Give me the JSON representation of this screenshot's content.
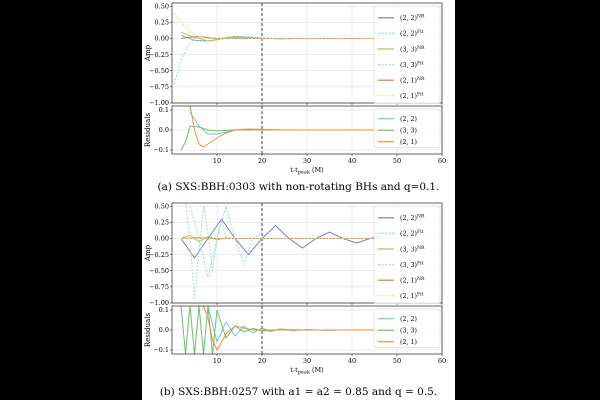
{
  "figures": [
    {
      "caption": "(a) SXS:BBH:0303 with non-rotating BHs and q=0.1.",
      "xlabel": "t-t_peak (M)",
      "amp_ylabel": "Amp",
      "res_ylabel": "Residuals",
      "amp_yticks": [
        "0.50",
        "0.25",
        "0.00",
        "−0.25",
        "−0.50",
        "−0.75",
        "−1.00"
      ],
      "res_yticks": [
        "0.1",
        "0.0",
        "−0.1"
      ],
      "xticks": [
        "10",
        "20",
        "30",
        "40",
        "50",
        "60"
      ],
      "amp_legend": [
        "(2, 2)^NR",
        "(2, 2)^Fit",
        "(3, 3)^NR",
        "(3, 3)^Fit",
        "(2, 1)^NR",
        "(2, 1)^Fit"
      ],
      "res_legend": [
        "(2, 2)",
        "(3, 3)",
        "(2, 1)"
      ]
    },
    {
      "caption": "(b) SXS:BBH:0257 with a1 = a2 = 0.85 and q = 0.5.",
      "xlabel": "t-t_peak (M)",
      "amp_ylabel": "Amp",
      "res_ylabel": "Residuals",
      "amp_yticks": [
        "0.50",
        "0.25",
        "0.00",
        "−0.25",
        "−0.50",
        "−0.75",
        "−1.00"
      ],
      "res_yticks": [
        "0.1",
        "0.0",
        "−0.1"
      ],
      "xticks": [
        "10",
        "20",
        "30",
        "40",
        "50",
        "60"
      ],
      "amp_legend": [
        "(2, 2)^NR",
        "(2, 2)^Fit",
        "(3, 3)^NR",
        "(3, 3)^Fit",
        "(2, 1)^NR",
        "(2, 1)^Fit"
      ],
      "res_legend": [
        "(2, 2)",
        "(3, 3)",
        "(2, 1)"
      ]
    }
  ],
  "colors": {
    "c22nr": "#7b7bd6",
    "c22fit": "#7fe8f0",
    "c33nr": "#a8c84e",
    "c33fit": "#9fe0c8",
    "c21nr": "#e07a3a",
    "c21fit": "#f2d77a",
    "r22": "#6cc6ee",
    "r33": "#6cc06c",
    "r21": "#f0903a",
    "vline": "#000000"
  },
  "chart_data": [
    {
      "type": "line",
      "panel": "amplitude (a)",
      "xlim": [
        0,
        60
      ],
      "ylim": [
        -1.0,
        0.55
      ],
      "grid": true,
      "vline_x": 20,
      "legend_position": "right",
      "series": [
        {
          "name": "(2, 2)^NR",
          "x": [
            2,
            5,
            8,
            11,
            14,
            17,
            20,
            24,
            28,
            34,
            40,
            47
          ],
          "y": [
            0.05,
            -0.03,
            -0.04,
            0.0,
            0.03,
            0.02,
            0.005,
            -0.005,
            0.0,
            0.0,
            0.0,
            0.0
          ]
        },
        {
          "name": "(2, 2)^Fit",
          "x": [
            2,
            5,
            8,
            11,
            14,
            17,
            20,
            24,
            28,
            34,
            40,
            47
          ],
          "y": [
            0.05,
            -0.03,
            -0.04,
            0.0,
            0.03,
            0.02,
            0.005,
            -0.005,
            0.0,
            0.0,
            0.0,
            0.0
          ]
        },
        {
          "name": "(3, 3)^NR",
          "x": [
            2,
            4,
            6,
            8,
            10,
            13,
            16,
            20,
            25,
            32,
            40,
            47
          ],
          "y": [
            0.1,
            0.04,
            0.0,
            -0.04,
            -0.02,
            0.02,
            0.01,
            0.0,
            0.0,
            0.0,
            0.0,
            0.0
          ]
        },
        {
          "name": "(3, 3)^Fit",
          "x": [
            0.5,
            2,
            3.5,
            5,
            7,
            9,
            12,
            16,
            20,
            30,
            47
          ],
          "y": [
            -0.7,
            -0.35,
            -0.12,
            0.0,
            0.03,
            0.01,
            0.0,
            0.0,
            0.0,
            0.0,
            0.0
          ]
        },
        {
          "name": "(2, 1)^NR",
          "x": [
            2,
            4,
            6,
            8,
            10,
            13,
            16,
            20,
            30,
            47
          ],
          "y": [
            0.0,
            0.02,
            0.03,
            0.01,
            0.0,
            0.0,
            0.0,
            0.0,
            0.0,
            0.0
          ]
        },
        {
          "name": "(2, 1)^Fit",
          "x": [
            0.5,
            2,
            4,
            6,
            8,
            11,
            15,
            20,
            30,
            47
          ],
          "y": [
            0.4,
            0.25,
            0.1,
            0.03,
            0.0,
            0.0,
            0.0,
            0.0,
            0.0,
            0.0
          ]
        }
      ]
    },
    {
      "type": "line",
      "panel": "residuals (a)",
      "xlim": [
        0,
        60
      ],
      "ylim": [
        -0.12,
        0.12
      ],
      "grid": true,
      "vline_x": 20,
      "legend_position": "right",
      "series": [
        {
          "name": "(2, 2)",
          "x": [
            4,
            6,
            8,
            10,
            12,
            14,
            17,
            20,
            25,
            30,
            40,
            47
          ],
          "y": [
            0.09,
            0.02,
            -0.02,
            -0.02,
            -0.01,
            0.0,
            0.005,
            0.0,
            0.0,
            0.0,
            0.0,
            0.0
          ]
        },
        {
          "name": "(3, 3)",
          "x": [
            2,
            3,
            4,
            6,
            8,
            10,
            13,
            16,
            20,
            30,
            47
          ],
          "y": [
            -0.1,
            -0.06,
            0.02,
            0.015,
            0.0,
            -0.005,
            0.0,
            0.0,
            0.0,
            0.0,
            0.0
          ]
        },
        {
          "name": "(2, 1)",
          "x": [
            4,
            5,
            6,
            7,
            8,
            10,
            12,
            14,
            17,
            20,
            25,
            30,
            47
          ],
          "y": [
            0.12,
            0.0,
            -0.07,
            -0.085,
            -0.07,
            -0.04,
            -0.015,
            0.0,
            0.005,
            0.003,
            0.0,
            0.0,
            0.0
          ]
        }
      ]
    },
    {
      "type": "line",
      "panel": "amplitude (b)",
      "xlim": [
        0,
        60
      ],
      "ylim": [
        -1.0,
        0.55
      ],
      "grid": true,
      "vline_x": 20,
      "legend_position": "right",
      "series": [
        {
          "name": "(2, 2)^NR",
          "x": [
            2,
            5,
            8,
            11,
            14,
            17,
            20,
            23,
            26,
            29,
            32,
            35,
            38,
            41,
            44,
            47
          ],
          "y": [
            0.0,
            -0.3,
            0.0,
            0.3,
            0.0,
            -0.25,
            0.0,
            0.2,
            0.0,
            -0.15,
            0.0,
            0.1,
            0.0,
            -0.07,
            0.0,
            0.04
          ]
        },
        {
          "name": "(2, 2)^Fit",
          "x": [
            4,
            6,
            8,
            10,
            12,
            14,
            16,
            18,
            20
          ],
          "y": [
            0.5,
            0.0,
            -0.6,
            0.0,
            0.5,
            0.0,
            -0.4,
            0.0,
            0.1
          ]
        },
        {
          "name": "(3, 3)^NR",
          "x": [
            2,
            4,
            6,
            8,
            10,
            12,
            14,
            18,
            24,
            32,
            47
          ],
          "y": [
            0.0,
            0.05,
            -0.05,
            0.03,
            -0.02,
            0.01,
            0.0,
            0.0,
            0.0,
            0.0,
            0.0
          ]
        },
        {
          "name": "(3, 3)^Fit",
          "x": [
            3,
            4,
            5,
            6,
            7,
            8,
            9,
            10,
            11,
            12,
            14
          ],
          "y": [
            0.55,
            0.0,
            -0.95,
            -0.2,
            0.5,
            0.1,
            -0.5,
            0.0,
            0.3,
            0.0,
            0.0
          ]
        },
        {
          "name": "(2, 1)^NR",
          "x": [
            2,
            6,
            10,
            16,
            20,
            30,
            47
          ],
          "y": [
            0.0,
            0.01,
            0.0,
            0.0,
            0.0,
            0.0,
            0.0
          ]
        },
        {
          "name": "(2, 1)^Fit",
          "x": [
            2,
            6,
            10,
            16,
            20,
            30,
            47
          ],
          "y": [
            0.0,
            0.0,
            0.0,
            0.0,
            0.0,
            0.0,
            0.0
          ]
        }
      ]
    },
    {
      "type": "line",
      "panel": "residuals (b)",
      "xlim": [
        0,
        60
      ],
      "ylim": [
        -0.12,
        0.12
      ],
      "grid": true,
      "vline_x": 20,
      "legend_position": "right",
      "series": [
        {
          "name": "(2, 2)",
          "x": [
            8,
            10,
            12,
            14,
            16,
            18,
            20,
            22,
            24,
            27,
            30,
            34,
            38,
            42,
            47
          ],
          "y": [
            0.12,
            -0.06,
            0.04,
            -0.03,
            0.02,
            -0.015,
            0.01,
            -0.008,
            0.006,
            -0.004,
            0.003,
            -0.002,
            0.0,
            0.0,
            0.0
          ]
        },
        {
          "name": "(3, 3)",
          "x": [
            2,
            3,
            4,
            5,
            6,
            7,
            8,
            9,
            10,
            12,
            14,
            16,
            18,
            20,
            25,
            30,
            47
          ],
          "y": [
            0.12,
            -0.12,
            0.12,
            -0.12,
            0.12,
            -0.12,
            0.12,
            -0.12,
            0.1,
            -0.04,
            0.02,
            -0.01,
            0.008,
            -0.005,
            0.002,
            0.0,
            0.0
          ]
        },
        {
          "name": "(2, 1)",
          "x": [
            7,
            8,
            9,
            10,
            11,
            12,
            14,
            16,
            18,
            20,
            24,
            30,
            47
          ],
          "y": [
            0.12,
            0.06,
            -0.05,
            -0.1,
            -0.06,
            -0.02,
            0.02,
            0.01,
            0.0,
            0.0,
            0.0,
            0.0,
            0.0
          ]
        }
      ]
    }
  ]
}
